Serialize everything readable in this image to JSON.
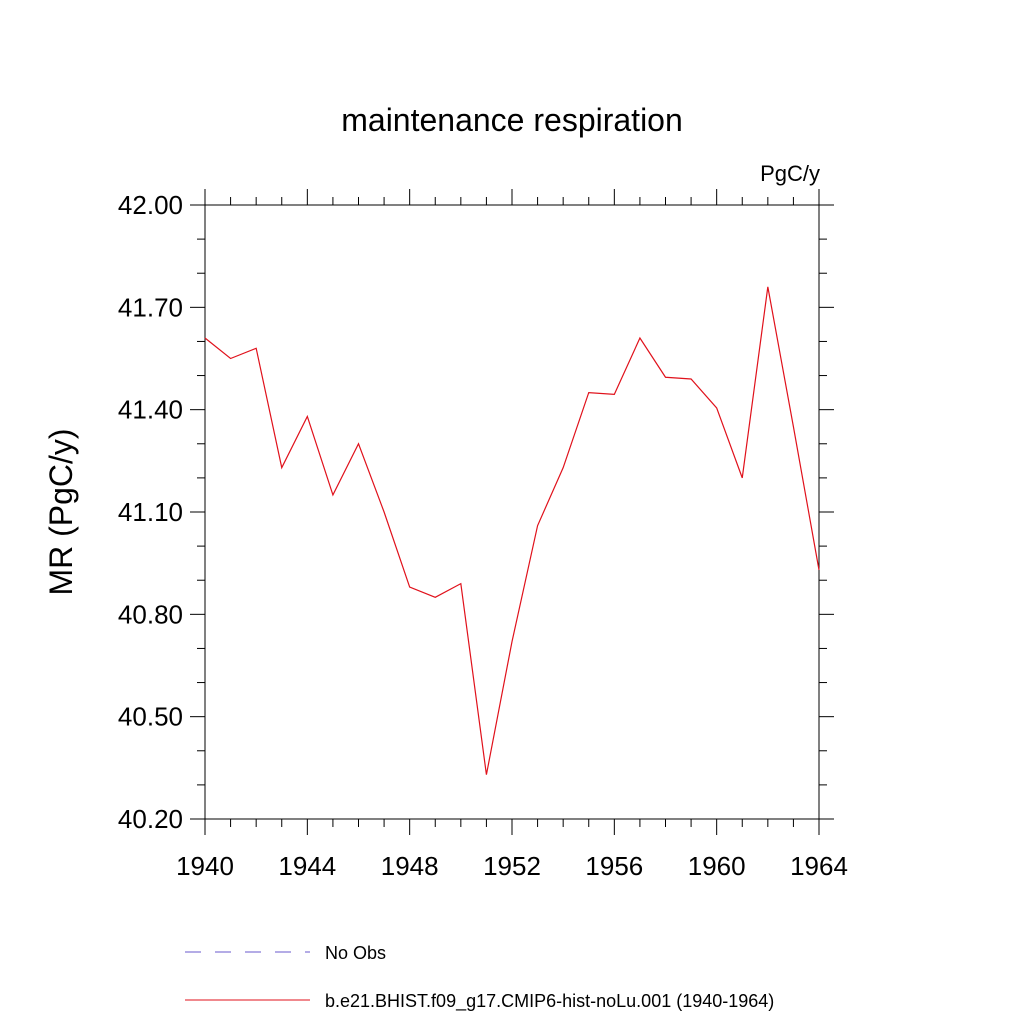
{
  "chart_data": {
    "type": "line",
    "title": "maintenance respiration",
    "units_label": "PgC/y",
    "ylabel": "MR  (PgC/y)",
    "xlabel": "",
    "xlim": [
      1940,
      1964
    ],
    "ylim": [
      40.2,
      42.0
    ],
    "x_ticks": [
      1940,
      1944,
      1948,
      1952,
      1956,
      1960,
      1964
    ],
    "x_tick_labels": [
      "1940",
      "1944",
      "1948",
      "1952",
      "1956",
      "1960",
      "1964"
    ],
    "y_ticks": [
      40.2,
      40.5,
      40.8,
      41.1,
      41.4,
      41.7,
      42.0
    ],
    "y_tick_labels": [
      "40.20",
      "40.50",
      "40.80",
      "41.10",
      "41.40",
      "41.70",
      "42.00"
    ],
    "grid": false,
    "legend_position": "bottom",
    "series": [
      {
        "name": "No Obs",
        "color": "#6a5acd",
        "style": "dashed",
        "x": [],
        "values": []
      },
      {
        "name": "b.e21.BHIST.f09_g17.CMIP6-hist-noLu.001 (1940-1964)",
        "color": "#e0111b",
        "style": "solid",
        "x": [
          1940,
          1941,
          1942,
          1943,
          1944,
          1945,
          1946,
          1947,
          1948,
          1949,
          1950,
          1951,
          1952,
          1953,
          1954,
          1955,
          1956,
          1957,
          1958,
          1959,
          1960,
          1961,
          1962,
          1963,
          1964
        ],
        "values": [
          41.61,
          41.55,
          41.58,
          41.23,
          41.38,
          41.15,
          41.3,
          41.1,
          40.88,
          40.85,
          40.89,
          40.33,
          40.72,
          41.06,
          41.23,
          41.45,
          41.445,
          41.61,
          41.495,
          41.49,
          41.405,
          41.2,
          41.76,
          41.35,
          40.93
        ]
      }
    ]
  }
}
